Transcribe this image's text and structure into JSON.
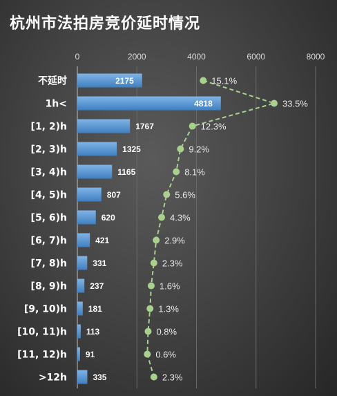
{
  "chart_data": {
    "type": "bar",
    "title": "杭州市法拍房竞价延时情况",
    "categories": [
      "不延时",
      "1h<",
      "[1, 2)h",
      "[2, 3)h",
      "[3, 4)h",
      "[4, 5)h",
      "[5, 6)h",
      "[6, 7)h",
      "[7, 8)h",
      "[8, 9)h",
      "[9, 10)h",
      "[10, 11)h",
      "[11, 12)h",
      ">12h"
    ],
    "series": [
      {
        "type": "bar",
        "values": [
          2175,
          4818,
          1767,
          1325,
          1165,
          807,
          620,
          421,
          331,
          237,
          181,
          113,
          91,
          335
        ]
      },
      {
        "type": "line",
        "values": [
          15.1,
          33.5,
          12.3,
          9.2,
          8.1,
          5.6,
          4.3,
          2.9,
          2.3,
          1.6,
          1.3,
          0.8,
          0.6,
          2.3
        ],
        "labels": [
          "15.1%",
          "33.5%",
          "12.3%",
          "9.2%",
          "8.1%",
          "5.6%",
          "4.3%",
          "2.9%",
          "2.3%",
          "1.6%",
          "1.3%",
          "0.8%",
          "0.6%",
          "2.3%"
        ]
      }
    ],
    "xaxis": {
      "position": "top",
      "range": [
        0,
        8000
      ],
      "ticks": [
        0,
        2000,
        4000,
        6000,
        8000
      ],
      "grid": true
    },
    "colors": {
      "bar": "#5b9bd5",
      "line": "#a9d18e",
      "text": "#ffffff",
      "tick": "#d9d9d9",
      "grid": "#6a6a6a"
    }
  }
}
